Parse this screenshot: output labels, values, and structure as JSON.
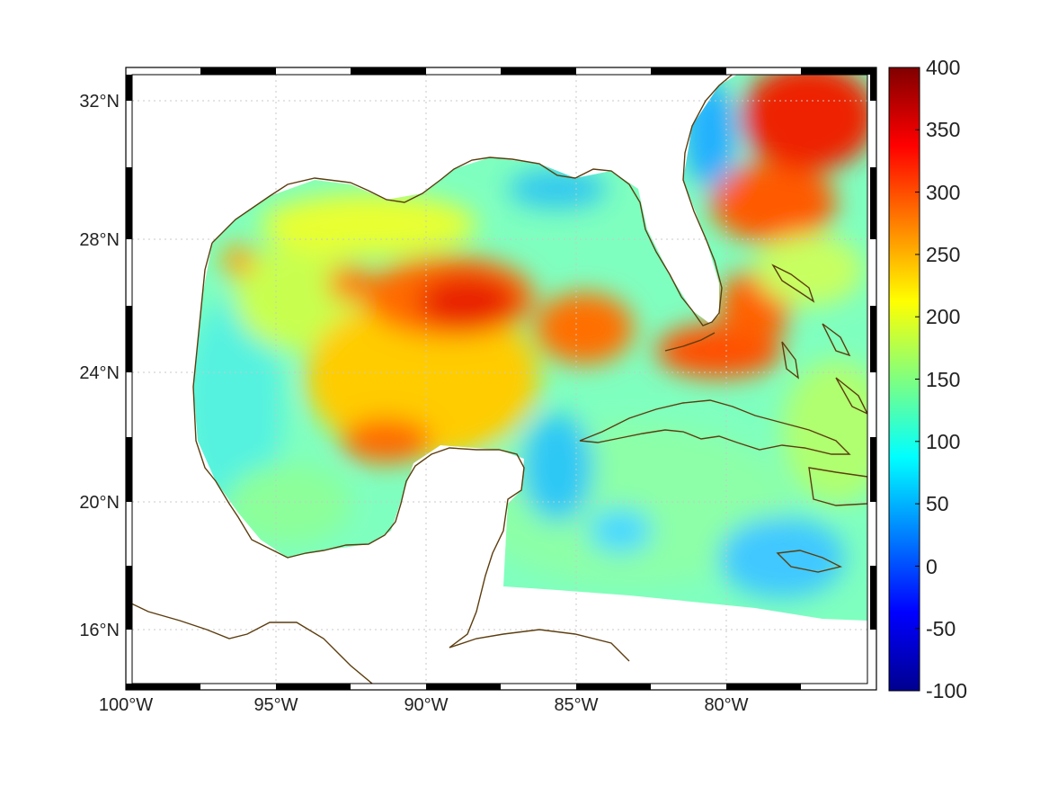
{
  "map": {
    "lon_ticks": [
      "100°W",
      "95°W",
      "90°W",
      "85°W",
      "80°W"
    ],
    "lat_ticks": [
      "32°N",
      "28°N",
      "24°N",
      "20°N",
      "16°N"
    ],
    "extent": {
      "lon_min": -100,
      "lon_max": -75,
      "lat_min": 14.3,
      "lat_max": 33
    },
    "grid": "dotted",
    "coastline_color": "#5c3d0e"
  },
  "colorbar": {
    "ticks": [
      "400",
      "350",
      "300",
      "250",
      "200",
      "150",
      "100",
      "50",
      "0",
      "-50",
      "-100"
    ],
    "min": -100,
    "max": 400,
    "colormap": "jet"
  }
}
